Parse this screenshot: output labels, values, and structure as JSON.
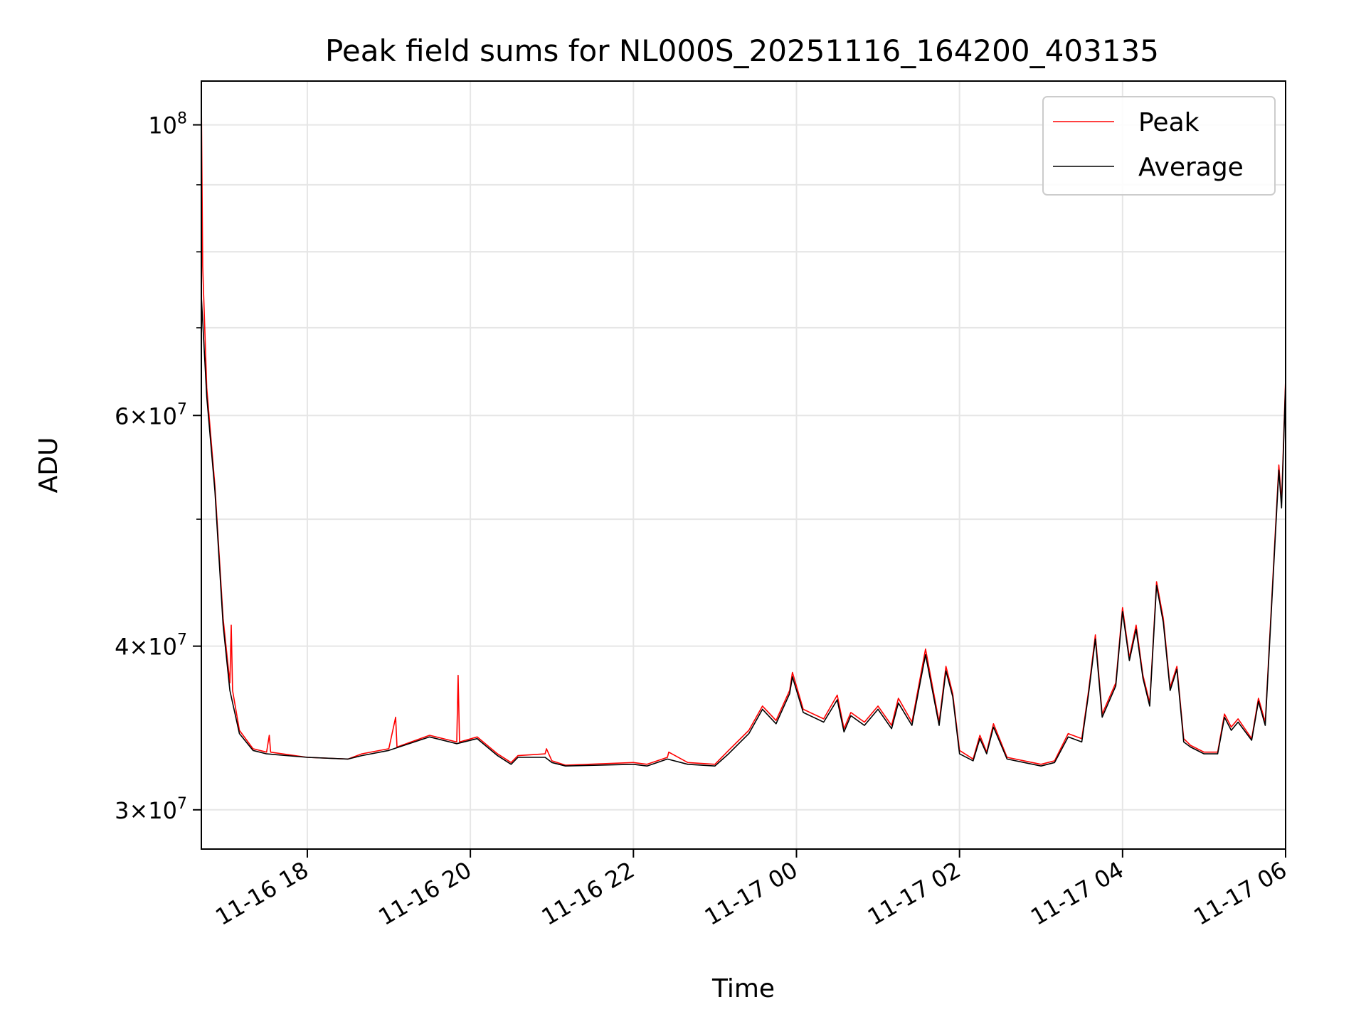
{
  "chart_data": {
    "type": "line",
    "title": "Peak field sums for NL000S_20251116_164200_403135",
    "xlabel": "Time",
    "ylabel": "ADU",
    "yscale": "log",
    "grid": true,
    "legend_position": "top-right",
    "xlim": [
      "2025-11-16 16:42",
      "2025-11-17 06:00"
    ],
    "ylim": [
      28000000,
      108000000
    ],
    "x_ticks": [
      "11-16 18",
      "11-16 20",
      "11-16 22",
      "11-17 00",
      "11-17 02",
      "11-17 04",
      "11-17 06"
    ],
    "y_ticks": [
      {
        "value": 30000000,
        "base": "3",
        "exponent": "7"
      },
      {
        "value": 40000000,
        "base": "4",
        "exponent": "7"
      },
      {
        "value": 60000000,
        "base": "6",
        "exponent": "7"
      },
      {
        "value": 100000000,
        "base": "",
        "exponent": "8"
      }
    ],
    "series": [
      {
        "name": "Peak",
        "color": "#ff0000",
        "points": [
          [
            "2025-11-16 16:42",
            105000000
          ],
          [
            "2025-11-16 16:43",
            78000000
          ],
          [
            "2025-11-16 16:46",
            63000000
          ],
          [
            "2025-11-16 16:52",
            53000000
          ],
          [
            "2025-11-16 16:58",
            42000000
          ],
          [
            "2025-11-16 17:03",
            37500000
          ],
          [
            "2025-11-16 17:04",
            41500000
          ],
          [
            "2025-11-16 17:05",
            37000000
          ],
          [
            "2025-11-16 17:10",
            34500000
          ],
          [
            "2025-11-16 17:20",
            33400000
          ],
          [
            "2025-11-16 17:30",
            33200000
          ],
          [
            "2025-11-16 17:32",
            34200000
          ],
          [
            "2025-11-16 17:33",
            33200000
          ],
          [
            "2025-11-16 18:00",
            32900000
          ],
          [
            "2025-11-16 18:30",
            32800000
          ],
          [
            "2025-11-16 18:40",
            33100000
          ],
          [
            "2025-11-16 19:00",
            33400000
          ],
          [
            "2025-11-16 19:05",
            35300000
          ],
          [
            "2025-11-16 19:06",
            33500000
          ],
          [
            "2025-11-16 19:30",
            34200000
          ],
          [
            "2025-11-16 19:50",
            33800000
          ],
          [
            "2025-11-16 19:51",
            38000000
          ],
          [
            "2025-11-16 19:52",
            33800000
          ],
          [
            "2025-11-16 20:05",
            34100000
          ],
          [
            "2025-11-16 20:20",
            33100000
          ],
          [
            "2025-11-16 20:30",
            32600000
          ],
          [
            "2025-11-16 20:35",
            33000000
          ],
          [
            "2025-11-16 20:55",
            33100000
          ],
          [
            "2025-11-16 20:56",
            33400000
          ],
          [
            "2025-11-16 21:00",
            32700000
          ],
          [
            "2025-11-16 21:10",
            32450000
          ],
          [
            "2025-11-16 22:00",
            32600000
          ],
          [
            "2025-11-16 22:10",
            32500000
          ],
          [
            "2025-11-16 22:25",
            32900000
          ],
          [
            "2025-11-16 22:26",
            33200000
          ],
          [
            "2025-11-16 22:40",
            32600000
          ],
          [
            "2025-11-16 23:00",
            32500000
          ],
          [
            "2025-11-16 23:10",
            33300000
          ],
          [
            "2025-11-16 23:25",
            34500000
          ],
          [
            "2025-11-16 23:35",
            36000000
          ],
          [
            "2025-11-16 23:45",
            35100000
          ],
          [
            "2025-11-16 23:55",
            37000000
          ],
          [
            "2025-11-16 23:57",
            38200000
          ],
          [
            "2025-11-17 00:05",
            35800000
          ],
          [
            "2025-11-17 00:20",
            35200000
          ],
          [
            "2025-11-17 00:30",
            36700000
          ],
          [
            "2025-11-17 00:35",
            34600000
          ],
          [
            "2025-11-17 00:40",
            35600000
          ],
          [
            "2025-11-17 00:50",
            35000000
          ],
          [
            "2025-11-17 01:00",
            36000000
          ],
          [
            "2025-11-17 01:10",
            34800000
          ],
          [
            "2025-11-17 01:15",
            36500000
          ],
          [
            "2025-11-17 01:25",
            35000000
          ],
          [
            "2025-11-17 01:35",
            39800000
          ],
          [
            "2025-11-17 01:45",
            35000000
          ],
          [
            "2025-11-17 01:50",
            38600000
          ],
          [
            "2025-11-17 01:55",
            36800000
          ],
          [
            "2025-11-17 02:00",
            33300000
          ],
          [
            "2025-11-17 02:10",
            32800000
          ],
          [
            "2025-11-17 02:15",
            34200000
          ],
          [
            "2025-11-17 02:20",
            33200000
          ],
          [
            "2025-11-17 02:25",
            34900000
          ],
          [
            "2025-11-17 02:35",
            32900000
          ],
          [
            "2025-11-17 03:00",
            32500000
          ],
          [
            "2025-11-17 03:10",
            32700000
          ],
          [
            "2025-11-17 03:20",
            34300000
          ],
          [
            "2025-11-17 03:30",
            34000000
          ],
          [
            "2025-11-17 03:35",
            37000000
          ],
          [
            "2025-11-17 03:40",
            40800000
          ],
          [
            "2025-11-17 03:45",
            35500000
          ],
          [
            "2025-11-17 03:55",
            37500000
          ],
          [
            "2025-11-17 04:00",
            42800000
          ],
          [
            "2025-11-17 04:05",
            39200000
          ],
          [
            "2025-11-17 04:10",
            41500000
          ],
          [
            "2025-11-17 04:15",
            38000000
          ],
          [
            "2025-11-17 04:20",
            36200000
          ],
          [
            "2025-11-17 04:25",
            44800000
          ],
          [
            "2025-11-17 04:30",
            42000000
          ],
          [
            "2025-11-17 04:35",
            37200000
          ],
          [
            "2025-11-17 04:40",
            38600000
          ],
          [
            "2025-11-17 04:45",
            34000000
          ],
          [
            "2025-11-17 04:50",
            33600000
          ],
          [
            "2025-11-17 05:00",
            33200000
          ],
          [
            "2025-11-17 05:10",
            33200000
          ],
          [
            "2025-11-17 05:15",
            35500000
          ],
          [
            "2025-11-17 05:20",
            34700000
          ],
          [
            "2025-11-17 05:25",
            35200000
          ],
          [
            "2025-11-17 05:35",
            34000000
          ],
          [
            "2025-11-17 05:40",
            36500000
          ],
          [
            "2025-11-17 05:45",
            35000000
          ],
          [
            "2025-11-17 05:55",
            55000000
          ],
          [
            "2025-11-17 05:57",
            51500000
          ],
          [
            "2025-11-17 06:00",
            64000000
          ]
        ]
      },
      {
        "name": "Average",
        "color": "#000000",
        "points": [
          [
            "2025-11-16 16:42",
            74000000
          ],
          [
            "2025-11-16 16:46",
            62000000
          ],
          [
            "2025-11-16 16:52",
            52500000
          ],
          [
            "2025-11-16 16:58",
            41500000
          ],
          [
            "2025-11-16 17:03",
            37000000
          ],
          [
            "2025-11-16 17:10",
            34300000
          ],
          [
            "2025-11-16 17:20",
            33300000
          ],
          [
            "2025-11-16 17:30",
            33100000
          ],
          [
            "2025-11-16 18:00",
            32900000
          ],
          [
            "2025-11-16 18:30",
            32800000
          ],
          [
            "2025-11-16 18:40",
            33000000
          ],
          [
            "2025-11-16 19:00",
            33300000
          ],
          [
            "2025-11-16 19:30",
            34100000
          ],
          [
            "2025-11-16 19:50",
            33700000
          ],
          [
            "2025-11-16 20:05",
            34000000
          ],
          [
            "2025-11-16 20:20",
            33000000
          ],
          [
            "2025-11-16 20:30",
            32500000
          ],
          [
            "2025-11-16 20:35",
            32900000
          ],
          [
            "2025-11-16 20:55",
            32900000
          ],
          [
            "2025-11-16 21:00",
            32600000
          ],
          [
            "2025-11-16 21:10",
            32400000
          ],
          [
            "2025-11-16 22:00",
            32500000
          ],
          [
            "2025-11-16 22:10",
            32400000
          ],
          [
            "2025-11-16 22:25",
            32800000
          ],
          [
            "2025-11-16 22:40",
            32500000
          ],
          [
            "2025-11-16 23:00",
            32400000
          ],
          [
            "2025-11-16 23:10",
            33100000
          ],
          [
            "2025-11-16 23:25",
            34300000
          ],
          [
            "2025-11-16 23:35",
            35800000
          ],
          [
            "2025-11-16 23:45",
            34900000
          ],
          [
            "2025-11-16 23:55",
            36800000
          ],
          [
            "2025-11-16 23:57",
            37900000
          ],
          [
            "2025-11-17 00:05",
            35600000
          ],
          [
            "2025-11-17 00:20",
            35000000
          ],
          [
            "2025-11-17 00:30",
            36400000
          ],
          [
            "2025-11-17 00:35",
            34400000
          ],
          [
            "2025-11-17 00:40",
            35400000
          ],
          [
            "2025-11-17 00:50",
            34800000
          ],
          [
            "2025-11-17 01:00",
            35800000
          ],
          [
            "2025-11-17 01:10",
            34600000
          ],
          [
            "2025-11-17 01:15",
            36200000
          ],
          [
            "2025-11-17 01:25",
            34800000
          ],
          [
            "2025-11-17 01:35",
            39400000
          ],
          [
            "2025-11-17 01:45",
            34800000
          ],
          [
            "2025-11-17 01:50",
            38300000
          ],
          [
            "2025-11-17 01:55",
            36600000
          ],
          [
            "2025-11-17 02:00",
            33100000
          ],
          [
            "2025-11-17 02:10",
            32700000
          ],
          [
            "2025-11-17 02:15",
            34000000
          ],
          [
            "2025-11-17 02:20",
            33100000
          ],
          [
            "2025-11-17 02:25",
            34700000
          ],
          [
            "2025-11-17 02:35",
            32800000
          ],
          [
            "2025-11-17 03:00",
            32400000
          ],
          [
            "2025-11-17 03:10",
            32600000
          ],
          [
            "2025-11-17 03:20",
            34100000
          ],
          [
            "2025-11-17 03:30",
            33800000
          ],
          [
            "2025-11-17 03:35",
            36800000
          ],
          [
            "2025-11-17 03:40",
            40500000
          ],
          [
            "2025-11-17 03:45",
            35300000
          ],
          [
            "2025-11-17 03:55",
            37300000
          ],
          [
            "2025-11-17 04:00",
            42500000
          ],
          [
            "2025-11-17 04:05",
            39000000
          ],
          [
            "2025-11-17 04:10",
            41200000
          ],
          [
            "2025-11-17 04:15",
            37800000
          ],
          [
            "2025-11-17 04:20",
            36000000
          ],
          [
            "2025-11-17 04:25",
            44500000
          ],
          [
            "2025-11-17 04:30",
            41700000
          ],
          [
            "2025-11-17 04:35",
            37000000
          ],
          [
            "2025-11-17 04:40",
            38400000
          ],
          [
            "2025-11-17 04:45",
            33800000
          ],
          [
            "2025-11-17 04:50",
            33500000
          ],
          [
            "2025-11-17 05:00",
            33100000
          ],
          [
            "2025-11-17 05:10",
            33100000
          ],
          [
            "2025-11-17 05:15",
            35300000
          ],
          [
            "2025-11-17 05:20",
            34500000
          ],
          [
            "2025-11-17 05:25",
            35000000
          ],
          [
            "2025-11-17 05:35",
            33900000
          ],
          [
            "2025-11-17 05:40",
            36300000
          ],
          [
            "2025-11-17 05:45",
            34800000
          ],
          [
            "2025-11-17 05:55",
            54500000
          ],
          [
            "2025-11-17 05:57",
            51000000
          ],
          [
            "2025-11-17 06:00",
            63500000
          ]
        ]
      }
    ]
  }
}
